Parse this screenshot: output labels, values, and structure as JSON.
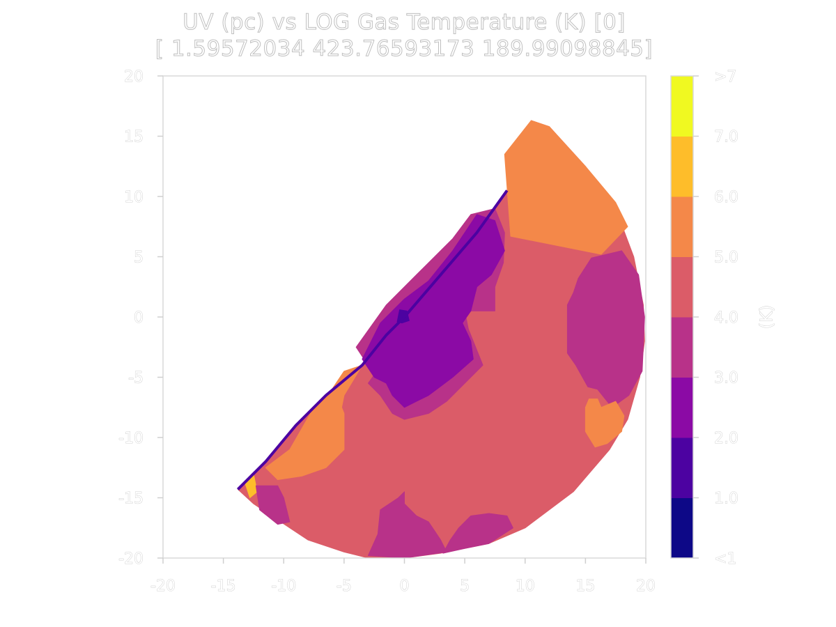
{
  "chart_data": {
    "type": "heatmap",
    "title": "UV (pc) vs LOG Gas Temperature (K) [0]",
    "subtitle": "[  1.59572034 423.76593173 189.99098845]",
    "xlabel": "",
    "ylabel": "",
    "xlim": [
      -20,
      20
    ],
    "ylim": [
      -20,
      20
    ],
    "x_ticks": [
      "-20",
      "-15",
      "-10",
      "-5",
      "0",
      "5",
      "10",
      "15",
      "20"
    ],
    "y_ticks": [
      "20",
      "15",
      "10",
      "5",
      "0",
      "-5",
      "-10",
      "-15",
      "-20"
    ],
    "grid": false,
    "colorbar": {
      "label": "(K)",
      "tick_labels": [
        ">7",
        "7.0",
        "6.0",
        "5.0",
        "4.0",
        "3.0",
        "2.0",
        "1.0",
        "<1"
      ],
      "bins": [
        {
          "range": "<1",
          "color": "#0d0887"
        },
        {
          "range": "1.0-2.0",
          "color": "#4c02a1"
        },
        {
          "range": "2.0-3.0",
          "color": "#8b0aa5"
        },
        {
          "range": "3.0-4.0",
          "color": "#b83289"
        },
        {
          "range": "4.0-5.0",
          "color": "#db5c68"
        },
        {
          "range": "5.0-6.0",
          "color": "#f48849"
        },
        {
          "range": "6.0-7.0",
          "color": "#febd2a"
        },
        {
          "range": ">7",
          "color": "#f0f921"
        }
      ]
    },
    "regions": [
      {
        "level": 4.5,
        "desc": "base disc segment",
        "points": [
          [
            -13.8,
            -14.3
          ],
          [
            -11.5,
            -12
          ],
          [
            -9,
            -9
          ],
          [
            -6.5,
            -6.5
          ],
          [
            -3.5,
            -4
          ],
          [
            -1.5,
            -1.5
          ],
          [
            0,
            0
          ],
          [
            3,
            3.5
          ],
          [
            6,
            7
          ],
          [
            8.5,
            10.5
          ],
          [
            10.5,
            16.3
          ],
          [
            12,
            15.8
          ],
          [
            15,
            12.5
          ],
          [
            17.5,
            9
          ],
          [
            19,
            5
          ],
          [
            19.8,
            1
          ],
          [
            19.9,
            -2
          ],
          [
            19.5,
            -5
          ],
          [
            18.5,
            -8.5
          ],
          [
            17,
            -11
          ],
          [
            14,
            -14.5
          ],
          [
            10,
            -17.5
          ],
          [
            7,
            -18.8
          ],
          [
            3,
            -19.6
          ],
          [
            0,
            -20
          ],
          [
            -3,
            -20
          ],
          [
            -5,
            -19.5
          ],
          [
            -8,
            -18.5
          ],
          [
            -11,
            -16.5
          ],
          [
            -12.5,
            -15.5
          ]
        ]
      },
      {
        "level": 5.5,
        "desc": "upper right warm lobe",
        "points": [
          [
            8.3,
            13.5
          ],
          [
            10.5,
            16.3
          ],
          [
            12,
            15.8
          ],
          [
            15,
            12.5
          ],
          [
            17.5,
            9.5
          ],
          [
            18.5,
            7.5
          ],
          [
            16.3,
            5.2
          ],
          [
            8.8,
            6.7
          ]
        ]
      },
      {
        "level": 3.5,
        "desc": "right cool patch",
        "points": [
          [
            15.5,
            4.9
          ],
          [
            18,
            5.5
          ],
          [
            19.4,
            3.5
          ],
          [
            19.9,
            0
          ],
          [
            19.7,
            -4.5
          ],
          [
            18.6,
            -6.5
          ],
          [
            17.2,
            -7.5
          ],
          [
            16,
            -6
          ],
          [
            15.2,
            -5.8
          ],
          [
            14.2,
            -4
          ],
          [
            13.5,
            -3
          ],
          [
            13.5,
            1
          ],
          [
            14,
            2
          ],
          [
            14.4,
            3.2
          ]
        ]
      },
      {
        "level": 5.5,
        "desc": "right warm blob",
        "points": [
          [
            15.3,
            -6.8
          ],
          [
            16,
            -6.8
          ],
          [
            16.3,
            -7.5
          ],
          [
            17.5,
            -7
          ],
          [
            18.2,
            -8.2
          ],
          [
            18,
            -9.5
          ],
          [
            16.8,
            -10.5
          ],
          [
            15.8,
            -10.8
          ],
          [
            15,
            -9.5
          ],
          [
            15,
            -7.5
          ]
        ]
      },
      {
        "level": 3.5,
        "desc": "ring around cold core",
        "points": [
          [
            -2.5,
            -4.8
          ],
          [
            -4,
            -2.5
          ],
          [
            -1.5,
            1
          ],
          [
            1,
            3.5
          ],
          [
            4,
            6.5
          ],
          [
            5.5,
            8.5
          ],
          [
            7.5,
            9
          ],
          [
            8.3,
            7
          ],
          [
            8.2,
            4.5
          ],
          [
            7.5,
            2.5
          ],
          [
            7.5,
            0.5
          ],
          [
            5,
            0.5
          ],
          [
            5.3,
            -1
          ],
          [
            6.5,
            -4
          ],
          [
            5,
            -5.5
          ],
          [
            3.5,
            -7
          ],
          [
            2,
            -8
          ],
          [
            0,
            -8.5
          ],
          [
            -1,
            -8
          ],
          [
            -2,
            -6.5
          ],
          [
            -3,
            -5.5
          ]
        ]
      },
      {
        "level": 2.5,
        "desc": "cold core",
        "points": [
          [
            -3.5,
            -3.5
          ],
          [
            -2,
            -0.5
          ],
          [
            0,
            1.5
          ],
          [
            2,
            3
          ],
          [
            4,
            5.5
          ],
          [
            6,
            8.5
          ],
          [
            7.5,
            8
          ],
          [
            8.3,
            5.5
          ],
          [
            7.2,
            3.5
          ],
          [
            6,
            2.5
          ],
          [
            5.5,
            0.5
          ],
          [
            4.8,
            -0.5
          ],
          [
            5.5,
            -2
          ],
          [
            5.7,
            -3.5
          ],
          [
            4,
            -5
          ],
          [
            2,
            -6.5
          ],
          [
            1,
            -7
          ],
          [
            0,
            -7.5
          ],
          [
            -1,
            -6.5
          ],
          [
            -1.5,
            -5.5
          ],
          [
            -2.5,
            -5
          ]
        ]
      },
      {
        "level": 1.5,
        "desc": "coldest spot",
        "points": [
          [
            -0.6,
            -0.4
          ],
          [
            -0.4,
            0.6
          ],
          [
            0.2,
            0.5
          ],
          [
            0.4,
            -0.3
          ],
          [
            -0.2,
            -0.5
          ]
        ]
      },
      {
        "level": 5.5,
        "desc": "lower left warm band",
        "points": [
          [
            -9.5,
            -11
          ],
          [
            -7.5,
            -7.5
          ],
          [
            -6,
            -6
          ],
          [
            -5,
            -4.5
          ],
          [
            -3.5,
            -4
          ],
          [
            -5,
            -6.5
          ],
          [
            -5.2,
            -7.5
          ],
          [
            -5,
            -8
          ],
          [
            -5,
            -11
          ],
          [
            -6.5,
            -12.5
          ],
          [
            -8.5,
            -13.2
          ],
          [
            -10.5,
            -13.5
          ],
          [
            -11.5,
            -12.5
          ]
        ]
      },
      {
        "level": 6.5,
        "desc": "hot sliver",
        "points": [
          [
            -13.2,
            -13.8
          ],
          [
            -12.5,
            -13
          ],
          [
            -12.2,
            -14.5
          ],
          [
            -12.8,
            -15
          ]
        ]
      },
      {
        "level": 3.5,
        "desc": "lower left cool patch",
        "points": [
          [
            -12.3,
            -14
          ],
          [
            -10.5,
            -14
          ],
          [
            -10,
            -15
          ],
          [
            -9.5,
            -17
          ],
          [
            -10.5,
            -17.2
          ],
          [
            -12,
            -16
          ]
        ]
      },
      {
        "level": 3.5,
        "desc": "bottom middle cool patch",
        "points": [
          [
            -2,
            -16
          ],
          [
            -0.5,
            -15
          ],
          [
            0,
            -14.5
          ],
          [
            0,
            -15.5
          ],
          [
            1,
            -16.5
          ],
          [
            2,
            -17
          ],
          [
            3,
            -18.5
          ],
          [
            3.5,
            -19.5
          ],
          [
            0,
            -20
          ],
          [
            -3,
            -19.8
          ],
          [
            -2.2,
            -18
          ]
        ]
      },
      {
        "level": 3.5,
        "desc": "bottom right cool patch",
        "points": [
          [
            4.5,
            -17.5
          ],
          [
            5.5,
            -16.5
          ],
          [
            7,
            -16.3
          ],
          [
            8.5,
            -16.5
          ],
          [
            9,
            -17.5
          ],
          [
            7,
            -18.8
          ],
          [
            5,
            -19.2
          ],
          [
            3.2,
            -19.6
          ],
          [
            3.8,
            -18.5
          ]
        ]
      }
    ]
  }
}
